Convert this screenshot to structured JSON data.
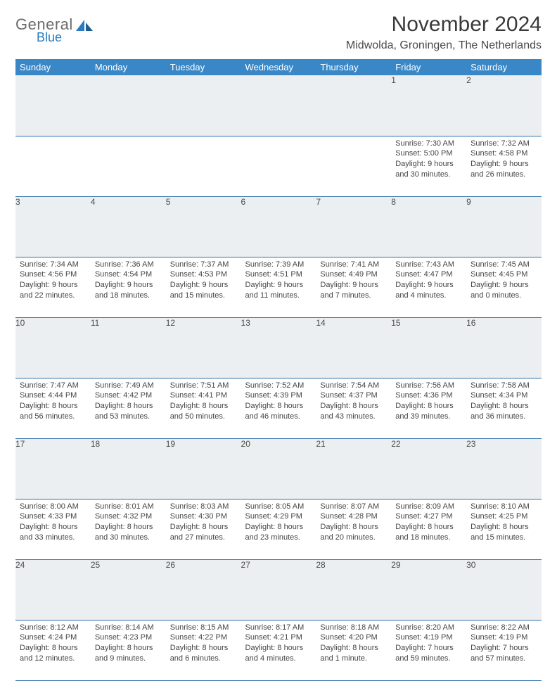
{
  "logo": {
    "general": "General",
    "blue": "Blue"
  },
  "title": "November 2024",
  "location": "Midwolda, Groningen, The Netherlands",
  "colors": {
    "header_bg": "#3a87c7",
    "header_text": "#ffffff",
    "daynum_bg": "#eceff1",
    "row_border": "#2f6fa8",
    "body_text": "#454545",
    "logo_gray": "#6b6b6b",
    "logo_blue": "#2a7bbf"
  },
  "day_labels": [
    "Sunday",
    "Monday",
    "Tuesday",
    "Wednesday",
    "Thursday",
    "Friday",
    "Saturday"
  ],
  "weeks": [
    [
      null,
      null,
      null,
      null,
      null,
      {
        "n": "1",
        "sr": "7:30 AM",
        "ss": "5:00 PM",
        "dl": "9 hours and 30 minutes."
      },
      {
        "n": "2",
        "sr": "7:32 AM",
        "ss": "4:58 PM",
        "dl": "9 hours and 26 minutes."
      }
    ],
    [
      {
        "n": "3",
        "sr": "7:34 AM",
        "ss": "4:56 PM",
        "dl": "9 hours and 22 minutes."
      },
      {
        "n": "4",
        "sr": "7:36 AM",
        "ss": "4:54 PM",
        "dl": "9 hours and 18 minutes."
      },
      {
        "n": "5",
        "sr": "7:37 AM",
        "ss": "4:53 PM",
        "dl": "9 hours and 15 minutes."
      },
      {
        "n": "6",
        "sr": "7:39 AM",
        "ss": "4:51 PM",
        "dl": "9 hours and 11 minutes."
      },
      {
        "n": "7",
        "sr": "7:41 AM",
        "ss": "4:49 PM",
        "dl": "9 hours and 7 minutes."
      },
      {
        "n": "8",
        "sr": "7:43 AM",
        "ss": "4:47 PM",
        "dl": "9 hours and 4 minutes."
      },
      {
        "n": "9",
        "sr": "7:45 AM",
        "ss": "4:45 PM",
        "dl": "9 hours and 0 minutes."
      }
    ],
    [
      {
        "n": "10",
        "sr": "7:47 AM",
        "ss": "4:44 PM",
        "dl": "8 hours and 56 minutes."
      },
      {
        "n": "11",
        "sr": "7:49 AM",
        "ss": "4:42 PM",
        "dl": "8 hours and 53 minutes."
      },
      {
        "n": "12",
        "sr": "7:51 AM",
        "ss": "4:41 PM",
        "dl": "8 hours and 50 minutes."
      },
      {
        "n": "13",
        "sr": "7:52 AM",
        "ss": "4:39 PM",
        "dl": "8 hours and 46 minutes."
      },
      {
        "n": "14",
        "sr": "7:54 AM",
        "ss": "4:37 PM",
        "dl": "8 hours and 43 minutes."
      },
      {
        "n": "15",
        "sr": "7:56 AM",
        "ss": "4:36 PM",
        "dl": "8 hours and 39 minutes."
      },
      {
        "n": "16",
        "sr": "7:58 AM",
        "ss": "4:34 PM",
        "dl": "8 hours and 36 minutes."
      }
    ],
    [
      {
        "n": "17",
        "sr": "8:00 AM",
        "ss": "4:33 PM",
        "dl": "8 hours and 33 minutes."
      },
      {
        "n": "18",
        "sr": "8:01 AM",
        "ss": "4:32 PM",
        "dl": "8 hours and 30 minutes."
      },
      {
        "n": "19",
        "sr": "8:03 AM",
        "ss": "4:30 PM",
        "dl": "8 hours and 27 minutes."
      },
      {
        "n": "20",
        "sr": "8:05 AM",
        "ss": "4:29 PM",
        "dl": "8 hours and 23 minutes."
      },
      {
        "n": "21",
        "sr": "8:07 AM",
        "ss": "4:28 PM",
        "dl": "8 hours and 20 minutes."
      },
      {
        "n": "22",
        "sr": "8:09 AM",
        "ss": "4:27 PM",
        "dl": "8 hours and 18 minutes."
      },
      {
        "n": "23",
        "sr": "8:10 AM",
        "ss": "4:25 PM",
        "dl": "8 hours and 15 minutes."
      }
    ],
    [
      {
        "n": "24",
        "sr": "8:12 AM",
        "ss": "4:24 PM",
        "dl": "8 hours and 12 minutes."
      },
      {
        "n": "25",
        "sr": "8:14 AM",
        "ss": "4:23 PM",
        "dl": "8 hours and 9 minutes."
      },
      {
        "n": "26",
        "sr": "8:15 AM",
        "ss": "4:22 PM",
        "dl": "8 hours and 6 minutes."
      },
      {
        "n": "27",
        "sr": "8:17 AM",
        "ss": "4:21 PM",
        "dl": "8 hours and 4 minutes."
      },
      {
        "n": "28",
        "sr": "8:18 AM",
        "ss": "4:20 PM",
        "dl": "8 hours and 1 minute."
      },
      {
        "n": "29",
        "sr": "8:20 AM",
        "ss": "4:19 PM",
        "dl": "7 hours and 59 minutes."
      },
      {
        "n": "30",
        "sr": "8:22 AM",
        "ss": "4:19 PM",
        "dl": "7 hours and 57 minutes."
      }
    ]
  ],
  "labels": {
    "sunrise": "Sunrise:",
    "sunset": "Sunset:",
    "daylight": "Daylight:"
  }
}
